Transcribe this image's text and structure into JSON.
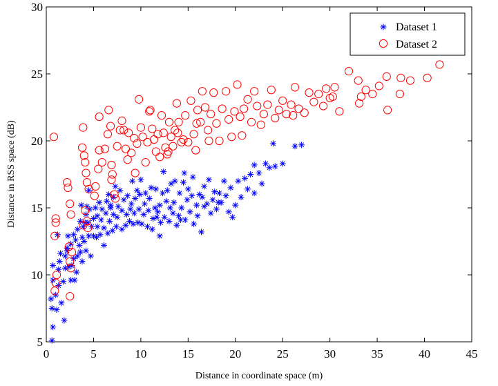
{
  "chart_data": {
    "type": "scatter",
    "title": "",
    "xlabel": "Distance in coordinate space (m)",
    "ylabel": "Distance in RSS space (dB)",
    "xlim": [
      0,
      45
    ],
    "ylim": [
      5,
      30
    ],
    "xticks": [
      "0",
      "5",
      "10",
      "15",
      "20",
      "25",
      "30",
      "35",
      "40",
      "45"
    ],
    "yticks": [
      "5",
      "10",
      "15",
      "20",
      "25",
      "30"
    ],
    "grid": false,
    "legend_position": "top-right",
    "series": [
      {
        "name": "Dataset 1",
        "marker": "asterisk",
        "color": "#0000ff",
        "points": [
          [
            0.6,
            5.1
          ],
          [
            0.7,
            6.1
          ],
          [
            0.6,
            7.5
          ],
          [
            0.5,
            8.2
          ],
          [
            0.7,
            9.6
          ],
          [
            0.7,
            10.7
          ],
          [
            1.1,
            7.4
          ],
          [
            1.0,
            8.5
          ],
          [
            1.3,
            9.2
          ],
          [
            1.3,
            10.4
          ],
          [
            1.4,
            11.0
          ],
          [
            1.5,
            11.6
          ],
          [
            1.6,
            7.9
          ],
          [
            1.9,
            6.6
          ],
          [
            1.8,
            9.5
          ],
          [
            2.0,
            10.5
          ],
          [
            2.0,
            11.4
          ],
          [
            2.2,
            11.8
          ],
          [
            2.4,
            10.6
          ],
          [
            2.3,
            12.9
          ],
          [
            2.6,
            9.6
          ],
          [
            2.7,
            10.7
          ],
          [
            2.6,
            12.3
          ],
          [
            2.9,
            13.0
          ],
          [
            2.9,
            11.2
          ],
          [
            3.0,
            9.6
          ],
          [
            3.1,
            12.6
          ],
          [
            3.2,
            10.2
          ],
          [
            3.3,
            13.4
          ],
          [
            3.3,
            11.4
          ],
          [
            3.5,
            12.2
          ],
          [
            3.6,
            14.0
          ],
          [
            3.6,
            11.7
          ],
          [
            3.8,
            12.8
          ],
          [
            3.9,
            13.6
          ],
          [
            3.8,
            11.0
          ],
          [
            4.0,
            12.5
          ],
          [
            4.1,
            13.9
          ],
          [
            4.2,
            14.5
          ],
          [
            4.3,
            15.1
          ],
          [
            4.2,
            11.8
          ],
          [
            4.5,
            12.9
          ],
          [
            4.4,
            13.9
          ],
          [
            4.5,
            16.3
          ],
          [
            4.6,
            14.9
          ],
          [
            4.7,
            11.4
          ],
          [
            4.8,
            13.6
          ],
          [
            5.0,
            12.9
          ],
          [
            5.0,
            14.2
          ],
          [
            5.2,
            15.0
          ],
          [
            5.3,
            12.8
          ],
          [
            5.4,
            13.6
          ],
          [
            5.4,
            14.4
          ],
          [
            5.6,
            15.4
          ],
          [
            5.7,
            13.0
          ],
          [
            5.8,
            14.1
          ],
          [
            5.9,
            14.9
          ],
          [
            6.1,
            12.2
          ],
          [
            6.1,
            13.5
          ],
          [
            6.3,
            14.6
          ],
          [
            6.4,
            15.5
          ],
          [
            6.5,
            13.1
          ],
          [
            6.7,
            14.0
          ],
          [
            6.6,
            16.0
          ],
          [
            6.8,
            15.2
          ],
          [
            7.0,
            13.3
          ],
          [
            7.1,
            14.5
          ],
          [
            7.1,
            15.8
          ],
          [
            7.3,
            16.6
          ],
          [
            7.4,
            13.6
          ],
          [
            7.5,
            14.3
          ],
          [
            7.6,
            15.1
          ],
          [
            7.8,
            16.3
          ],
          [
            8.0,
            13.4
          ],
          [
            8.0,
            14.8
          ],
          [
            8.2,
            15.6
          ],
          [
            8.4,
            13.7
          ],
          [
            8.5,
            14.5
          ],
          [
            8.6,
            15.9
          ],
          [
            8.8,
            14.0
          ],
          [
            8.9,
            14.9
          ],
          [
            9.0,
            15.3
          ],
          [
            9.2,
            13.8
          ],
          [
            9.3,
            14.6
          ],
          [
            9.4,
            15.7
          ],
          [
            9.6,
            16.3
          ],
          [
            9.7,
            13.9
          ],
          [
            9.8,
            14.9
          ],
          [
            9.9,
            16.0
          ],
          [
            10.0,
            17.1
          ],
          [
            10.1,
            13.8
          ],
          [
            10.3,
            14.5
          ],
          [
            10.4,
            15.3
          ],
          [
            10.5,
            16.1
          ],
          [
            10.7,
            13.6
          ],
          [
            10.8,
            14.8
          ],
          [
            10.9,
            15.7
          ],
          [
            11.1,
            16.5
          ],
          [
            11.2,
            13.4
          ],
          [
            11.3,
            14.2
          ],
          [
            11.5,
            15.0
          ],
          [
            11.6,
            16.4
          ],
          [
            11.8,
            14.7
          ],
          [
            12.0,
            15.2
          ],
          [
            12.1,
            13.9
          ],
          [
            12.3,
            16.1
          ],
          [
            12.4,
            17.7
          ],
          [
            12.5,
            14.3
          ],
          [
            12.7,
            15.5
          ],
          [
            12.8,
            16.3
          ],
          [
            13.0,
            14.0
          ],
          [
            13.1,
            15.0
          ],
          [
            13.2,
            16.8
          ],
          [
            13.4,
            14.6
          ],
          [
            13.5,
            15.4
          ],
          [
            13.6,
            17.0
          ],
          [
            13.8,
            13.7
          ],
          [
            14.0,
            14.4
          ],
          [
            14.1,
            16.1
          ],
          [
            14.3,
            15.0
          ],
          [
            14.5,
            16.9
          ],
          [
            14.6,
            17.6
          ],
          [
            14.7,
            14.1
          ],
          [
            14.9,
            15.6
          ],
          [
            15.0,
            16.4
          ],
          [
            15.2,
            14.7
          ],
          [
            15.4,
            15.9
          ],
          [
            15.5,
            17.3
          ],
          [
            15.6,
            13.8
          ],
          [
            15.9,
            15.2
          ],
          [
            16.0,
            14.4
          ],
          [
            16.2,
            16.0
          ],
          [
            16.4,
            13.2
          ],
          [
            16.5,
            15.8
          ],
          [
            16.7,
            16.6
          ],
          [
            17.0,
            15.3
          ],
          [
            17.2,
            17.1
          ],
          [
            17.4,
            14.6
          ],
          [
            17.6,
            15.6
          ],
          [
            17.8,
            16.2
          ],
          [
            18.0,
            14.9
          ],
          [
            18.3,
            16.1
          ],
          [
            18.5,
            15.4
          ],
          [
            18.8,
            17.0
          ],
          [
            19.0,
            15.9
          ],
          [
            19.3,
            14.7
          ],
          [
            19.5,
            16.5
          ],
          [
            19.7,
            14.3
          ],
          [
            20.0,
            15.2
          ],
          [
            20.3,
            17.0
          ],
          [
            20.6,
            15.8
          ],
          [
            21.0,
            17.2
          ],
          [
            21.3,
            16.4
          ],
          [
            21.6,
            17.5
          ],
          [
            22.0,
            16.1
          ],
          [
            22.0,
            18.2
          ],
          [
            22.5,
            17.6
          ],
          [
            22.8,
            16.8
          ],
          [
            23.2,
            18.3
          ],
          [
            23.6,
            18.0
          ],
          [
            24.2,
            18.1
          ],
          [
            24.0,
            19.8
          ],
          [
            25.0,
            18.3
          ],
          [
            26.3,
            19.6
          ],
          [
            27.0,
            19.7
          ],
          [
            3.7,
            15.2
          ],
          [
            2.2,
            12.0
          ],
          [
            1.2,
            13.0
          ],
          [
            6.8,
            15.0
          ],
          [
            9.1,
            17.0
          ],
          [
            11.7,
            14.3
          ],
          [
            12.0,
            12.9
          ],
          [
            14.2,
            14.1
          ],
          [
            16.7,
            15.1
          ],
          [
            18.2,
            15.4
          ]
        ]
      },
      {
        "name": "Dataset 2",
        "marker": "circle",
        "color": "#ff0000",
        "points": [
          [
            0.8,
            20.3
          ],
          [
            1.0,
            14.2
          ],
          [
            1.0,
            13.9
          ],
          [
            0.9,
            12.9
          ],
          [
            1.1,
            10.0
          ],
          [
            1.0,
            9.4
          ],
          [
            0.9,
            8.8
          ],
          [
            2.2,
            16.9
          ],
          [
            2.3,
            16.5
          ],
          [
            2.5,
            15.3
          ],
          [
            2.6,
            14.5
          ],
          [
            2.4,
            12.1
          ],
          [
            2.7,
            11.7
          ],
          [
            2.5,
            11.0
          ],
          [
            2.6,
            10.5
          ],
          [
            2.5,
            8.4
          ],
          [
            3.9,
            21.0
          ],
          [
            3.8,
            19.5
          ],
          [
            4.0,
            18.9
          ],
          [
            4.1,
            18.4
          ],
          [
            4.2,
            17.6
          ],
          [
            4.3,
            16.9
          ],
          [
            4.5,
            16.4
          ],
          [
            4.1,
            14.8
          ],
          [
            4.3,
            14.0
          ],
          [
            4.4,
            13.5
          ],
          [
            5.2,
            16.6
          ],
          [
            5.5,
            17.9
          ],
          [
            5.6,
            19.3
          ],
          [
            5.6,
            21.8
          ],
          [
            5.9,
            18.4
          ],
          [
            6.2,
            19.4
          ],
          [
            6.5,
            20.5
          ],
          [
            6.6,
            22.3
          ],
          [
            6.8,
            21.1
          ],
          [
            6.9,
            18.2
          ],
          [
            7.0,
            17.5
          ],
          [
            7.2,
            16.0
          ],
          [
            7.3,
            15.7
          ],
          [
            7.5,
            19.6
          ],
          [
            7.8,
            20.8
          ],
          [
            8.0,
            21.5
          ],
          [
            8.2,
            20.8
          ],
          [
            8.4,
            19.4
          ],
          [
            8.6,
            18.6
          ],
          [
            8.7,
            20.6
          ],
          [
            9.0,
            19.1
          ],
          [
            9.4,
            17.6
          ],
          [
            9.6,
            19.8
          ],
          [
            9.8,
            23.1
          ],
          [
            10.0,
            21.0
          ],
          [
            10.2,
            20.3
          ],
          [
            10.5,
            18.4
          ],
          [
            10.7,
            19.9
          ],
          [
            10.9,
            22.2
          ],
          [
            11.0,
            22.3
          ],
          [
            11.2,
            20.9
          ],
          [
            11.4,
            20.1
          ],
          [
            11.6,
            19.2
          ],
          [
            11.8,
            20.5
          ],
          [
            12.0,
            18.8
          ],
          [
            12.2,
            21.9
          ],
          [
            12.4,
            20.6
          ],
          [
            12.6,
            19.5
          ],
          [
            12.8,
            19.0
          ],
          [
            13.0,
            21.4
          ],
          [
            13.2,
            20.3
          ],
          [
            13.4,
            19.6
          ],
          [
            13.6,
            20.8
          ],
          [
            13.8,
            22.8
          ],
          [
            14.0,
            21.4
          ],
          [
            14.3,
            19.9
          ],
          [
            14.5,
            20.1
          ],
          [
            14.7,
            21.9
          ],
          [
            15.0,
            19.9
          ],
          [
            15.3,
            23.0
          ],
          [
            15.6,
            20.5
          ],
          [
            15.8,
            19.3
          ],
          [
            16.0,
            22.3
          ],
          [
            16.3,
            21.4
          ],
          [
            16.5,
            23.7
          ],
          [
            16.8,
            22.5
          ],
          [
            17.1,
            20.8
          ],
          [
            17.4,
            22.0
          ],
          [
            17.7,
            23.6
          ],
          [
            18.0,
            21.3
          ],
          [
            18.3,
            20.0
          ],
          [
            18.6,
            22.4
          ],
          [
            19.0,
            23.7
          ],
          [
            19.3,
            21.6
          ],
          [
            19.6,
            20.3
          ],
          [
            19.9,
            22.2
          ],
          [
            20.2,
            24.2
          ],
          [
            20.5,
            21.8
          ],
          [
            20.9,
            22.4
          ],
          [
            21.3,
            23.1
          ],
          [
            21.7,
            21.4
          ],
          [
            22.0,
            23.7
          ],
          [
            22.3,
            22.6
          ],
          [
            22.7,
            21.2
          ],
          [
            23.0,
            22.0
          ],
          [
            23.4,
            22.7
          ],
          [
            23.8,
            23.8
          ],
          [
            24.2,
            21.7
          ],
          [
            24.6,
            22.3
          ],
          [
            25.0,
            23.0
          ],
          [
            25.4,
            22.0
          ],
          [
            25.9,
            22.7
          ],
          [
            26.3,
            24.0
          ],
          [
            26.7,
            22.4
          ],
          [
            27.3,
            22.1
          ],
          [
            27.8,
            23.6
          ],
          [
            28.3,
            22.9
          ],
          [
            28.8,
            23.5
          ],
          [
            29.3,
            22.6
          ],
          [
            30.0,
            23.2
          ],
          [
            30.5,
            24.0
          ],
          [
            31.0,
            22.2
          ],
          [
            32.0,
            25.2
          ],
          [
            33.0,
            24.5
          ],
          [
            33.3,
            23.3
          ],
          [
            33.8,
            23.8
          ],
          [
            34.5,
            23.5
          ],
          [
            36.0,
            24.8
          ],
          [
            36.1,
            22.3
          ],
          [
            37.4,
            23.5
          ],
          [
            37.5,
            24.7
          ],
          [
            38.5,
            24.5
          ],
          [
            40.3,
            24.7
          ],
          [
            41.6,
            25.7
          ],
          [
            3.9,
            13.7
          ],
          [
            5.1,
            15.9
          ],
          [
            6.9,
            17.1
          ],
          [
            9.3,
            20.2
          ],
          [
            12.9,
            19.2
          ],
          [
            13.9,
            20.6
          ],
          [
            15.9,
            21.3
          ],
          [
            17.2,
            20.0
          ],
          [
            20.7,
            20.4
          ],
          [
            26.1,
            21.9
          ],
          [
            30.3,
            23.3
          ],
          [
            33.1,
            22.8
          ],
          [
            35.2,
            24.1
          ],
          [
            29.6,
            23.9
          ]
        ]
      }
    ]
  }
}
